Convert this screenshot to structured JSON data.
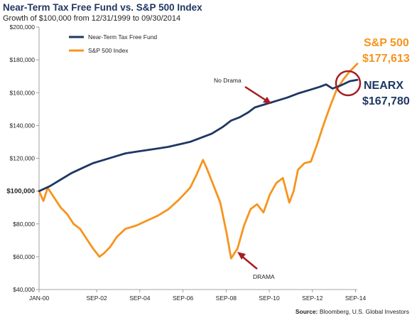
{
  "chart_data": {
    "type": "line",
    "title": "Near-Term Tax Free Fund vs. S&P 500 Index",
    "subtitle": "Growth of $100,000 from 12/31/1999 to 09/30/2014",
    "xlabel": "",
    "ylabel": "",
    "x_ticks": [
      "JAN-00",
      "SEP-02",
      "SEP-04",
      "SEP-06",
      "SEP-08",
      "SEP-10",
      "SEP-12",
      "SEP-14"
    ],
    "y_ticks": [
      "$40,000",
      "$60,000",
      "$80,000",
      "$100,000",
      "$120,000",
      "$140,000",
      "$160,000",
      "$180,000",
      "$200,000"
    ],
    "ylim": [
      40000,
      200000
    ],
    "xlim": [
      2000.0,
      2014.75
    ],
    "grid": false,
    "legend_position": "top-left",
    "series": [
      {
        "name": "Near-Term Tax Free Fund",
        "color": "#1f3763",
        "x": [
          2000.0,
          2000.5,
          2001.0,
          2001.5,
          2002.0,
          2002.5,
          2003.0,
          2003.5,
          2004.0,
          2004.5,
          2005.0,
          2005.5,
          2006.0,
          2006.5,
          2007.0,
          2007.5,
          2008.0,
          2008.5,
          2008.9,
          2009.3,
          2009.7,
          2010.0,
          2010.5,
          2011.0,
          2011.5,
          2012.0,
          2012.5,
          2013.0,
          2013.3,
          2013.6,
          2014.0,
          2014.4,
          2014.75
        ],
        "values": [
          100000,
          103000,
          107000,
          111000,
          114000,
          117000,
          119000,
          121000,
          123000,
          124000,
          125000,
          126000,
          127000,
          128500,
          130000,
          132500,
          135000,
          139000,
          143000,
          145000,
          148000,
          151000,
          153000,
          155000,
          157000,
          159500,
          161500,
          163500,
          165000,
          162500,
          164500,
          167000,
          167780
        ]
      },
      {
        "name": "S&P 500 Index",
        "color": "#f7941d",
        "x": [
          2000.0,
          2000.2,
          2000.4,
          2000.7,
          2001.0,
          2001.3,
          2001.6,
          2001.9,
          2002.2,
          2002.5,
          2002.8,
          2003.0,
          2003.3,
          2003.6,
          2004.0,
          2004.5,
          2005.0,
          2005.5,
          2006.0,
          2006.5,
          2007.0,
          2007.3,
          2007.6,
          2007.8,
          2008.1,
          2008.4,
          2008.7,
          2008.9,
          2009.2,
          2009.5,
          2009.8,
          2010.1,
          2010.4,
          2010.7,
          2011.0,
          2011.3,
          2011.6,
          2011.8,
          2012.0,
          2012.3,
          2012.6,
          2012.9,
          2013.2,
          2013.5,
          2013.8,
          2014.1,
          2014.4,
          2014.75
        ],
        "values": [
          100000,
          94000,
          102000,
          96000,
          90000,
          86000,
          80000,
          77000,
          71000,
          65000,
          60000,
          62000,
          66000,
          72000,
          77000,
          79000,
          82000,
          85000,
          89000,
          95000,
          102000,
          110000,
          119000,
          113000,
          103000,
          93000,
          74000,
          59000,
          65000,
          79000,
          89000,
          92000,
          87000,
          98000,
          105000,
          108000,
          93000,
          100000,
          113000,
          117000,
          118000,
          129000,
          141000,
          152000,
          162000,
          168000,
          173000,
          177613
        ]
      }
    ],
    "annotations": {
      "no_drama": "No Drama",
      "drama": "DRAMA",
      "sp_label": "S&P 500",
      "sp_value": "$177,613",
      "nearx_label": "NEARX",
      "nearx_value": "$167,780"
    },
    "colors": {
      "navy": "#1f3763",
      "orange": "#f7941d",
      "arrow_red": "#a71e22"
    }
  },
  "source": {
    "label": "Source:",
    "text": "Bloomberg, U.S. Global Investors"
  }
}
